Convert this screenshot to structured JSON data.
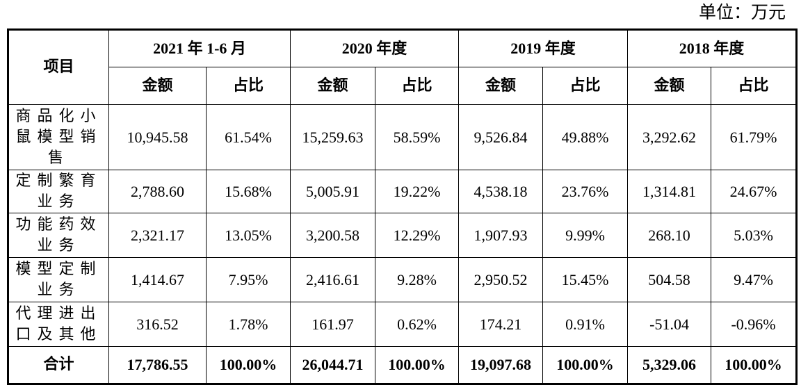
{
  "unit_label": "单位：万元",
  "header": {
    "item_label": "项目",
    "periods": [
      "2021 年 1-6 月",
      "2020 年度",
      "2019 年度",
      "2018 年度"
    ],
    "amount_label": "金额",
    "ratio_label": "占比"
  },
  "rows": [
    {
      "item": "商品化小鼠模型销售",
      "values": [
        "10,945.58",
        "61.54%",
        "15,259.63",
        "58.59%",
        "9,526.84",
        "49.88%",
        "3,292.62",
        "61.79%"
      ]
    },
    {
      "item": "定制繁育业务",
      "values": [
        "2,788.60",
        "15.68%",
        "5,005.91",
        "19.22%",
        "4,538.18",
        "23.76%",
        "1,314.81",
        "24.67%"
      ]
    },
    {
      "item": "功能药效业务",
      "values": [
        "2,321.17",
        "13.05%",
        "3,200.58",
        "12.29%",
        "1,907.93",
        "9.99%",
        "268.10",
        "5.03%"
      ]
    },
    {
      "item": "模型定制业务",
      "values": [
        "1,414.67",
        "7.95%",
        "2,416.61",
        "9.28%",
        "2,950.52",
        "15.45%",
        "504.58",
        "9.47%"
      ]
    },
    {
      "item": "代理进出口及其他",
      "values": [
        "316.52",
        "1.78%",
        "161.97",
        "0.62%",
        "174.21",
        "0.91%",
        "-51.04",
        "-0.96%"
      ]
    }
  ],
  "total": {
    "item": "合计",
    "values": [
      "17,786.55",
      "100.00%",
      "26,044.71",
      "100.00%",
      "19,097.68",
      "100.00%",
      "5,329.06",
      "100.00%"
    ]
  }
}
